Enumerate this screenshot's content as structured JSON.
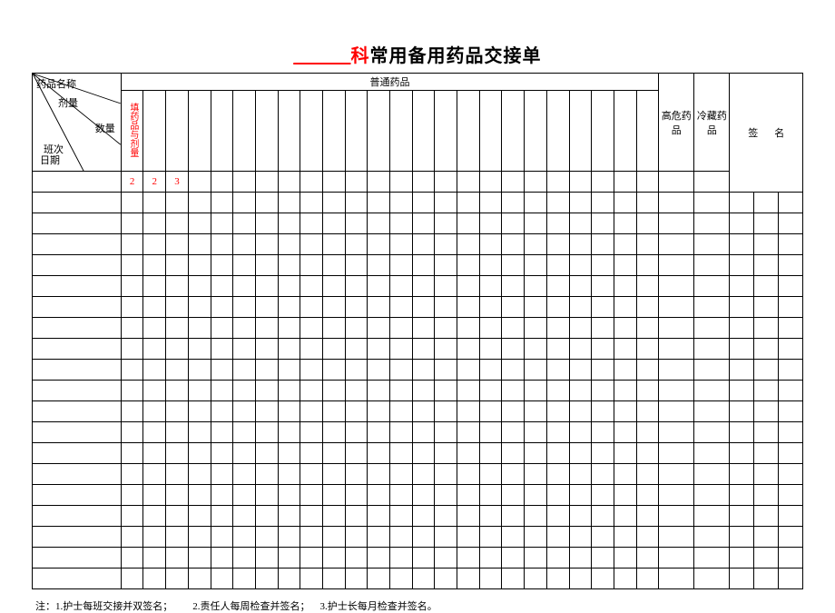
{
  "title": {
    "blank": "＿＿＿",
    "ke": "科",
    "rest": "常用备用药品交接单"
  },
  "header": {
    "drug_name": "药品名称",
    "dosage": "剂量",
    "quantity": "数量",
    "shift": "班次",
    "date": "日期",
    "ordinary": "普通药品",
    "high_risk": "高危药品",
    "cold": "冷藏药品",
    "fill_label": "填药品与剂量",
    "signature": "签名"
  },
  "row2_nums": [
    "2",
    "2",
    "3"
  ],
  "columns": {
    "first_col_width": 95,
    "narrow_count": 24,
    "high_risk_span": 1,
    "cold_span": 1,
    "sig_span": 3
  },
  "body_rows": 19,
  "footer": {
    "prefix": "注：",
    "n1": "1.护士每班交接并双签名；",
    "n2": "2.责任人每周检查并签名；",
    "n3": "3.护士长每月检查并签名。"
  },
  "style": {
    "red": "#ff0000",
    "border": "#000000",
    "bg": "#ffffff"
  }
}
